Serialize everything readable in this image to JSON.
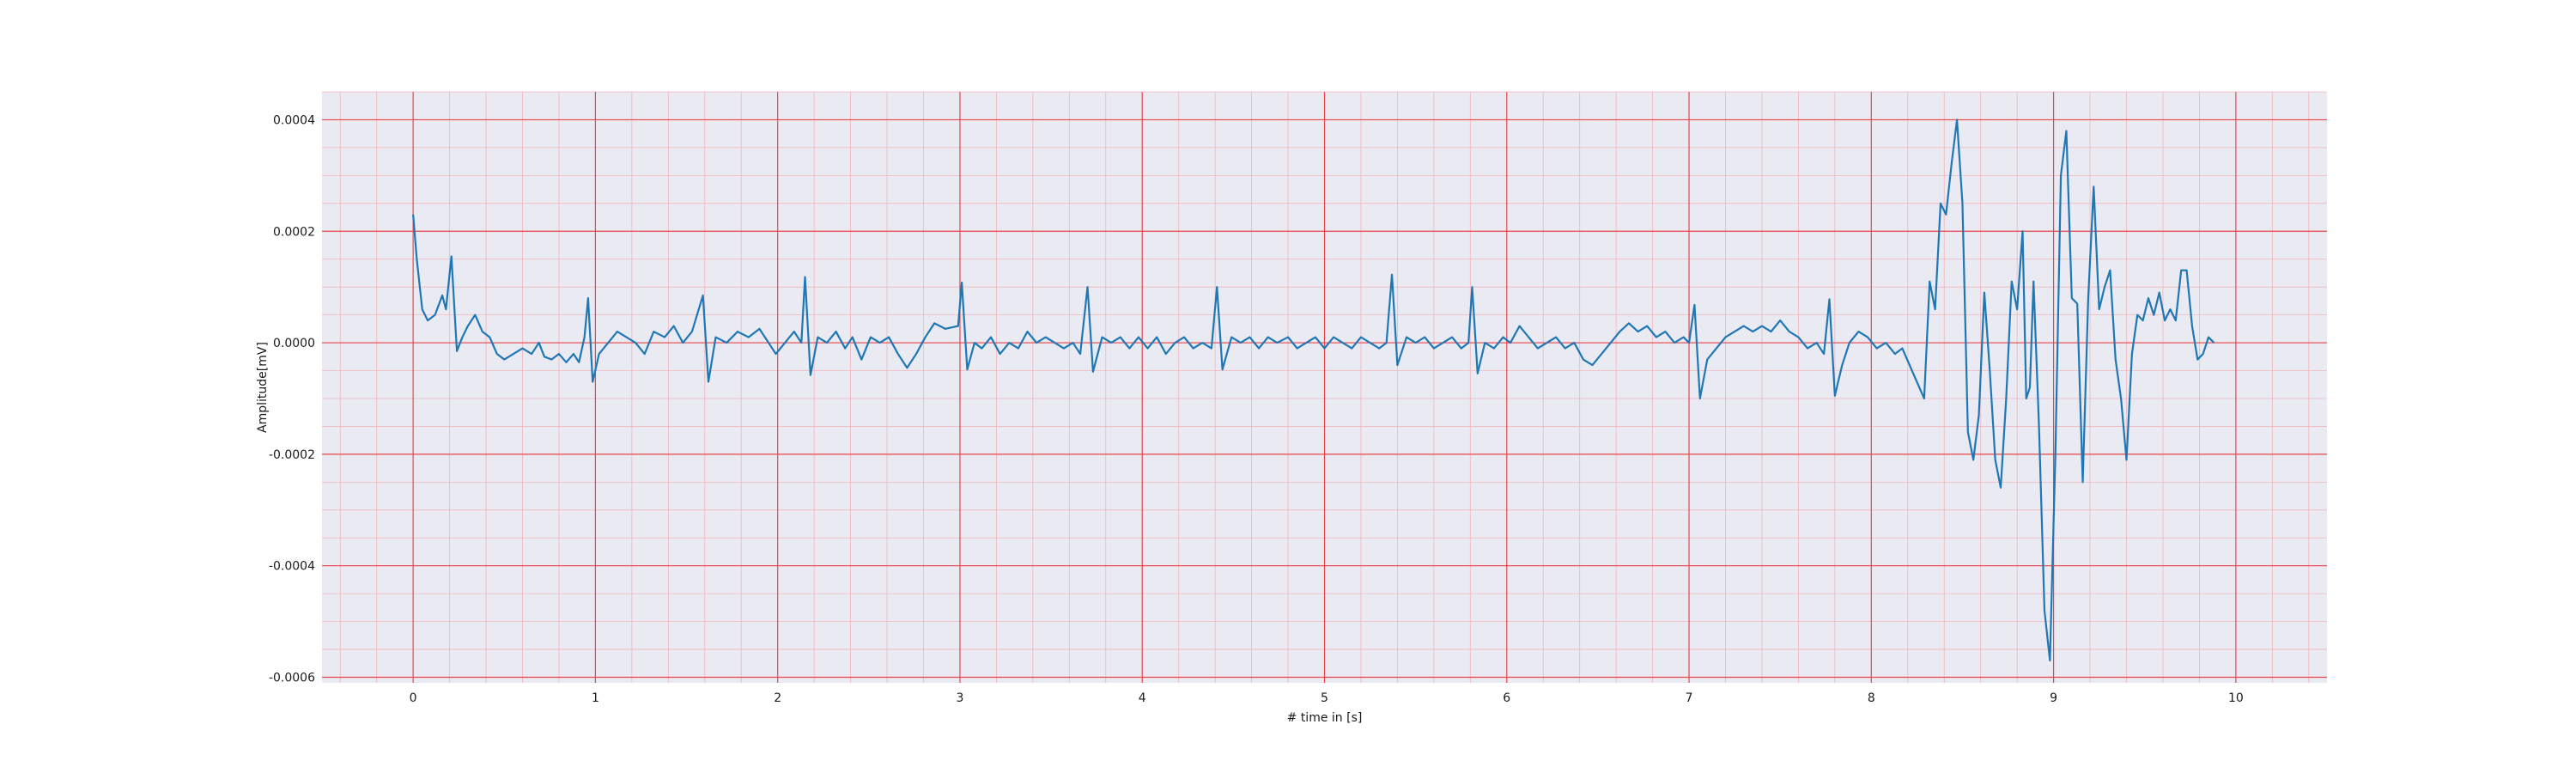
{
  "chart_data": {
    "type": "line",
    "title": "",
    "xlabel": "# time in [s]",
    "ylabel": "Amplitude[mV]",
    "xlim": [
      -0.5,
      10.5
    ],
    "ylim": [
      -0.00061,
      0.00045
    ],
    "x_ticks": [
      0,
      1,
      2,
      3,
      4,
      5,
      6,
      7,
      8,
      9,
      10
    ],
    "x_tick_labels": [
      "0",
      "1",
      "2",
      "3",
      "4",
      "5",
      "6",
      "7",
      "8",
      "9",
      "10"
    ],
    "y_ticks": [
      -0.0006,
      -0.0004,
      -0.0002,
      0.0,
      0.0002,
      0.0004
    ],
    "y_tick_labels": [
      "-0.0006",
      "-0.0004",
      "-0.0002",
      "0.0000",
      "0.0002",
      "0.0004"
    ],
    "grid": {
      "major": true,
      "minor": true
    },
    "colors": {
      "background": "#eaeaf2",
      "major_grid": "#e8454b",
      "minor_grid": "#f2b5bd",
      "line": "#1f77b4"
    },
    "series": [
      {
        "points": [
          [
            0.0,
            0.00023
          ],
          [
            0.02,
            0.00015
          ],
          [
            0.05,
            6e-05
          ],
          [
            0.08,
            4e-05
          ],
          [
            0.12,
            5e-05
          ],
          [
            0.16,
            8.5e-05
          ],
          [
            0.18,
            6e-05
          ],
          [
            0.21,
            0.000155
          ],
          [
            0.24,
            -1.5e-05
          ],
          [
            0.27,
            1e-05
          ],
          [
            0.3,
            3e-05
          ],
          [
            0.34,
            5e-05
          ],
          [
            0.38,
            2e-05
          ],
          [
            0.42,
            1e-05
          ],
          [
            0.46,
            -2e-05
          ],
          [
            0.5,
            -3e-05
          ],
          [
            0.55,
            -2e-05
          ],
          [
            0.6,
            -1e-05
          ],
          [
            0.65,
            -2e-05
          ],
          [
            0.69,
            0.0
          ],
          [
            0.72,
            -2.5e-05
          ],
          [
            0.76,
            -3e-05
          ],
          [
            0.8,
            -2e-05
          ],
          [
            0.84,
            -3.5e-05
          ],
          [
            0.88,
            -2e-05
          ],
          [
            0.91,
            -3.5e-05
          ],
          [
            0.94,
            1e-05
          ],
          [
            0.96,
            8e-05
          ],
          [
            0.985,
            -7e-05
          ],
          [
            1.02,
            -2e-05
          ],
          [
            1.07,
            0.0
          ],
          [
            1.12,
            2e-05
          ],
          [
            1.17,
            1e-05
          ],
          [
            1.22,
            0.0
          ],
          [
            1.27,
            -2e-05
          ],
          [
            1.32,
            2e-05
          ],
          [
            1.38,
            1e-05
          ],
          [
            1.43,
            3e-05
          ],
          [
            1.48,
            0.0
          ],
          [
            1.53,
            2e-05
          ],
          [
            1.59,
            8.5e-05
          ],
          [
            1.62,
            -7e-05
          ],
          [
            1.66,
            1e-05
          ],
          [
            1.72,
            0.0
          ],
          [
            1.78,
            2e-05
          ],
          [
            1.84,
            1e-05
          ],
          [
            1.9,
            2.5e-05
          ],
          [
            1.95,
            0.0
          ],
          [
            1.99,
            -2e-05
          ],
          [
            2.04,
            0.0
          ],
          [
            2.09,
            2e-05
          ],
          [
            2.13,
            0.0
          ],
          [
            2.15,
            0.000118
          ],
          [
            2.18,
            -5.8e-05
          ],
          [
            2.22,
            1e-05
          ],
          [
            2.27,
            0.0
          ],
          [
            2.32,
            2e-05
          ],
          [
            2.37,
            -1e-05
          ],
          [
            2.41,
            1e-05
          ],
          [
            2.46,
            -3e-05
          ],
          [
            2.51,
            1e-05
          ],
          [
            2.56,
            0.0
          ],
          [
            2.61,
            1e-05
          ],
          [
            2.66,
            -2e-05
          ],
          [
            2.71,
            -4.5e-05
          ],
          [
            2.76,
            -2e-05
          ],
          [
            2.81,
            1e-05
          ],
          [
            2.86,
            3.5e-05
          ],
          [
            2.92,
            2.5e-05
          ],
          [
            2.99,
            3e-05
          ],
          [
            3.01,
            0.000108
          ],
          [
            3.04,
            -4.8e-05
          ],
          [
            3.08,
            0.0
          ],
          [
            3.12,
            -1e-05
          ],
          [
            3.17,
            1e-05
          ],
          [
            3.22,
            -2e-05
          ],
          [
            3.27,
            0.0
          ],
          [
            3.32,
            -1e-05
          ],
          [
            3.37,
            2e-05
          ],
          [
            3.42,
            0.0
          ],
          [
            3.47,
            1e-05
          ],
          [
            3.52,
            0.0
          ],
          [
            3.57,
            -1e-05
          ],
          [
            3.62,
            0.0
          ],
          [
            3.66,
            -2e-05
          ],
          [
            3.7,
            0.0001
          ],
          [
            3.73,
            -5.2e-05
          ],
          [
            3.78,
            1e-05
          ],
          [
            3.83,
            0.0
          ],
          [
            3.88,
            1e-05
          ],
          [
            3.93,
            -1e-05
          ],
          [
            3.98,
            1e-05
          ],
          [
            4.03,
            -1e-05
          ],
          [
            4.08,
            1e-05
          ],
          [
            4.13,
            -2e-05
          ],
          [
            4.18,
            0.0
          ],
          [
            4.23,
            1e-05
          ],
          [
            4.28,
            -1e-05
          ],
          [
            4.33,
            0.0
          ],
          [
            4.38,
            -1e-05
          ],
          [
            4.41,
            0.0001
          ],
          [
            4.44,
            -4.8e-05
          ],
          [
            4.49,
            1e-05
          ],
          [
            4.54,
            0.0
          ],
          [
            4.59,
            1e-05
          ],
          [
            4.64,
            -1e-05
          ],
          [
            4.69,
            1e-05
          ],
          [
            4.74,
            0.0
          ],
          [
            4.8,
            1e-05
          ],
          [
            4.85,
            -1e-05
          ],
          [
            4.9,
            0.0
          ],
          [
            4.95,
            1e-05
          ],
          [
            5.0,
            -1e-05
          ],
          [
            5.05,
            1e-05
          ],
          [
            5.1,
            0.0
          ],
          [
            5.15,
            -1e-05
          ],
          [
            5.2,
            1e-05
          ],
          [
            5.25,
            0.0
          ],
          [
            5.3,
            -1e-05
          ],
          [
            5.34,
            0.0
          ],
          [
            5.37,
            0.000122
          ],
          [
            5.4,
            -4e-05
          ],
          [
            5.45,
            1e-05
          ],
          [
            5.5,
            0.0
          ],
          [
            5.55,
            1e-05
          ],
          [
            5.6,
            -1e-05
          ],
          [
            5.65,
            0.0
          ],
          [
            5.7,
            1e-05
          ],
          [
            5.75,
            -1e-05
          ],
          [
            5.79,
            0.0
          ],
          [
            5.81,
            0.0001
          ],
          [
            5.84,
            -5.5e-05
          ],
          [
            5.88,
            0.0
          ],
          [
            5.93,
            -1e-05
          ],
          [
            5.98,
            1e-05
          ],
          [
            6.02,
            0.0
          ],
          [
            6.07,
            3e-05
          ],
          [
            6.12,
            1e-05
          ],
          [
            6.17,
            -1e-05
          ],
          [
            6.22,
            0.0
          ],
          [
            6.27,
            1e-05
          ],
          [
            6.32,
            -1e-05
          ],
          [
            6.37,
            0.0
          ],
          [
            6.42,
            -3e-05
          ],
          [
            6.47,
            -4e-05
          ],
          [
            6.52,
            -2e-05
          ],
          [
            6.57,
            0.0
          ],
          [
            6.62,
            2e-05
          ],
          [
            6.67,
            3.5e-05
          ],
          [
            6.72,
            2e-05
          ],
          [
            6.77,
            3e-05
          ],
          [
            6.82,
            1e-05
          ],
          [
            6.87,
            2e-05
          ],
          [
            6.92,
            0.0
          ],
          [
            6.97,
            1e-05
          ],
          [
            7.0,
            0.0
          ],
          [
            7.03,
            6.8e-05
          ],
          [
            7.06,
            -0.0001
          ],
          [
            7.1,
            -3e-05
          ],
          [
            7.15,
            -1e-05
          ],
          [
            7.2,
            1e-05
          ],
          [
            7.25,
            2e-05
          ],
          [
            7.3,
            3e-05
          ],
          [
            7.35,
            2e-05
          ],
          [
            7.4,
            3e-05
          ],
          [
            7.45,
            2e-05
          ],
          [
            7.5,
            4e-05
          ],
          [
            7.55,
            2e-05
          ],
          [
            7.6,
            1e-05
          ],
          [
            7.65,
            -1e-05
          ],
          [
            7.7,
            0.0
          ],
          [
            7.74,
            -2e-05
          ],
          [
            7.77,
            7.8e-05
          ],
          [
            7.8,
            -9.5e-05
          ],
          [
            7.84,
            -4e-05
          ],
          [
            7.88,
            0.0
          ],
          [
            7.93,
            2e-05
          ],
          [
            7.98,
            1e-05
          ],
          [
            8.03,
            -1e-05
          ],
          [
            8.08,
            0.0
          ],
          [
            8.13,
            -2e-05
          ],
          [
            8.17,
            -1e-05
          ],
          [
            8.21,
            -4e-05
          ],
          [
            8.25,
            -7e-05
          ],
          [
            8.29,
            -0.0001
          ],
          [
            8.32,
            0.00011
          ],
          [
            8.35,
            6e-05
          ],
          [
            8.38,
            0.00025
          ],
          [
            8.41,
            0.00023
          ],
          [
            8.44,
            0.00032
          ],
          [
            8.47,
            0.0004
          ],
          [
            8.5,
            0.00025
          ],
          [
            8.53,
            -0.00016
          ],
          [
            8.56,
            -0.00021
          ],
          [
            8.59,
            -0.00013
          ],
          [
            8.62,
            9e-05
          ],
          [
            8.65,
            -5e-05
          ],
          [
            8.68,
            -0.00021
          ],
          [
            8.71,
            -0.00026
          ],
          [
            8.74,
            -0.0001
          ],
          [
            8.77,
            0.00011
          ],
          [
            8.8,
            6e-05
          ],
          [
            8.83,
            0.0002
          ],
          [
            8.85,
            -0.0001
          ],
          [
            8.87,
            -8e-05
          ],
          [
            8.89,
            0.00011
          ],
          [
            8.92,
            -0.00015
          ],
          [
            8.95,
            -0.00048
          ],
          [
            8.98,
            -0.00057
          ],
          [
            9.01,
            -0.0002
          ],
          [
            9.04,
            0.0003
          ],
          [
            9.07,
            0.00038
          ],
          [
            9.1,
            8e-05
          ],
          [
            9.13,
            7e-05
          ],
          [
            9.16,
            -0.00025
          ],
          [
            9.19,
            8e-05
          ],
          [
            9.22,
            0.00028
          ],
          [
            9.25,
            6e-05
          ],
          [
            9.28,
            0.0001
          ],
          [
            9.31,
            0.00013
          ],
          [
            9.34,
            -3e-05
          ],
          [
            9.37,
            -0.0001
          ],
          [
            9.4,
            -0.00021
          ],
          [
            9.43,
            -2e-05
          ],
          [
            9.46,
            5e-05
          ],
          [
            9.49,
            4e-05
          ],
          [
            9.52,
            8e-05
          ],
          [
            9.55,
            5e-05
          ],
          [
            9.58,
            9e-05
          ],
          [
            9.61,
            4e-05
          ],
          [
            9.64,
            6e-05
          ],
          [
            9.67,
            4e-05
          ],
          [
            9.7,
            0.00013
          ],
          [
            9.73,
            0.00013
          ],
          [
            9.76,
            3e-05
          ],
          [
            9.79,
            -3e-05
          ],
          [
            9.82,
            -2e-05
          ],
          [
            9.85,
            1e-05
          ],
          [
            9.88,
            0.0
          ]
        ]
      }
    ]
  }
}
